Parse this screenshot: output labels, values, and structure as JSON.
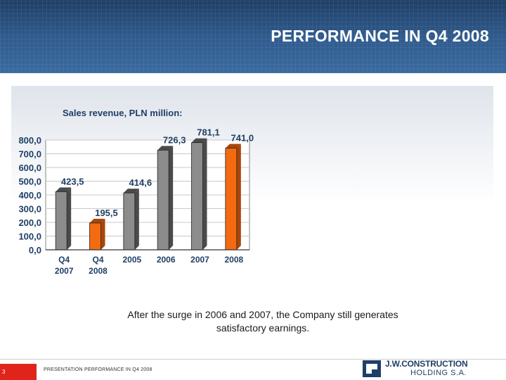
{
  "header": {
    "title": "PERFORMANCE IN Q4 2008"
  },
  "chart_data": {
    "type": "bar",
    "title": "Sales revenue, PLN million:",
    "categories": [
      "Q4\n2007",
      "Q4\n2008",
      "2005",
      "2006",
      "2007",
      "2008"
    ],
    "values": [
      423.5,
      195.5,
      414.6,
      726.3,
      781.1,
      741.0
    ],
    "value_labels": [
      "423,5",
      "195,5",
      "414,6",
      "726,3",
      "781,1",
      "741,0"
    ],
    "y_ticks": [
      "0,0",
      "100,0",
      "200,0",
      "300,0",
      "400,0",
      "500,0",
      "600,0",
      "700,0",
      "800,0"
    ],
    "ylim": [
      0,
      800
    ],
    "grid": true,
    "bar_colors": [
      "#8c8c8c",
      "#f36b10",
      "#8c8c8c",
      "#8c8c8c",
      "#8c8c8c",
      "#f36b10"
    ]
  },
  "caption": {
    "line1": "After the surge in 2006 and 2007, the Company still generates",
    "line2": "satisfactory earnings."
  },
  "footer": {
    "page_number": "3",
    "text": "PRESENTATION PERFORMANCE IN Q4 2008",
    "logo_brand": "J.W.CONSTRUCTION",
    "logo_sub": "HOLDING S.A."
  }
}
